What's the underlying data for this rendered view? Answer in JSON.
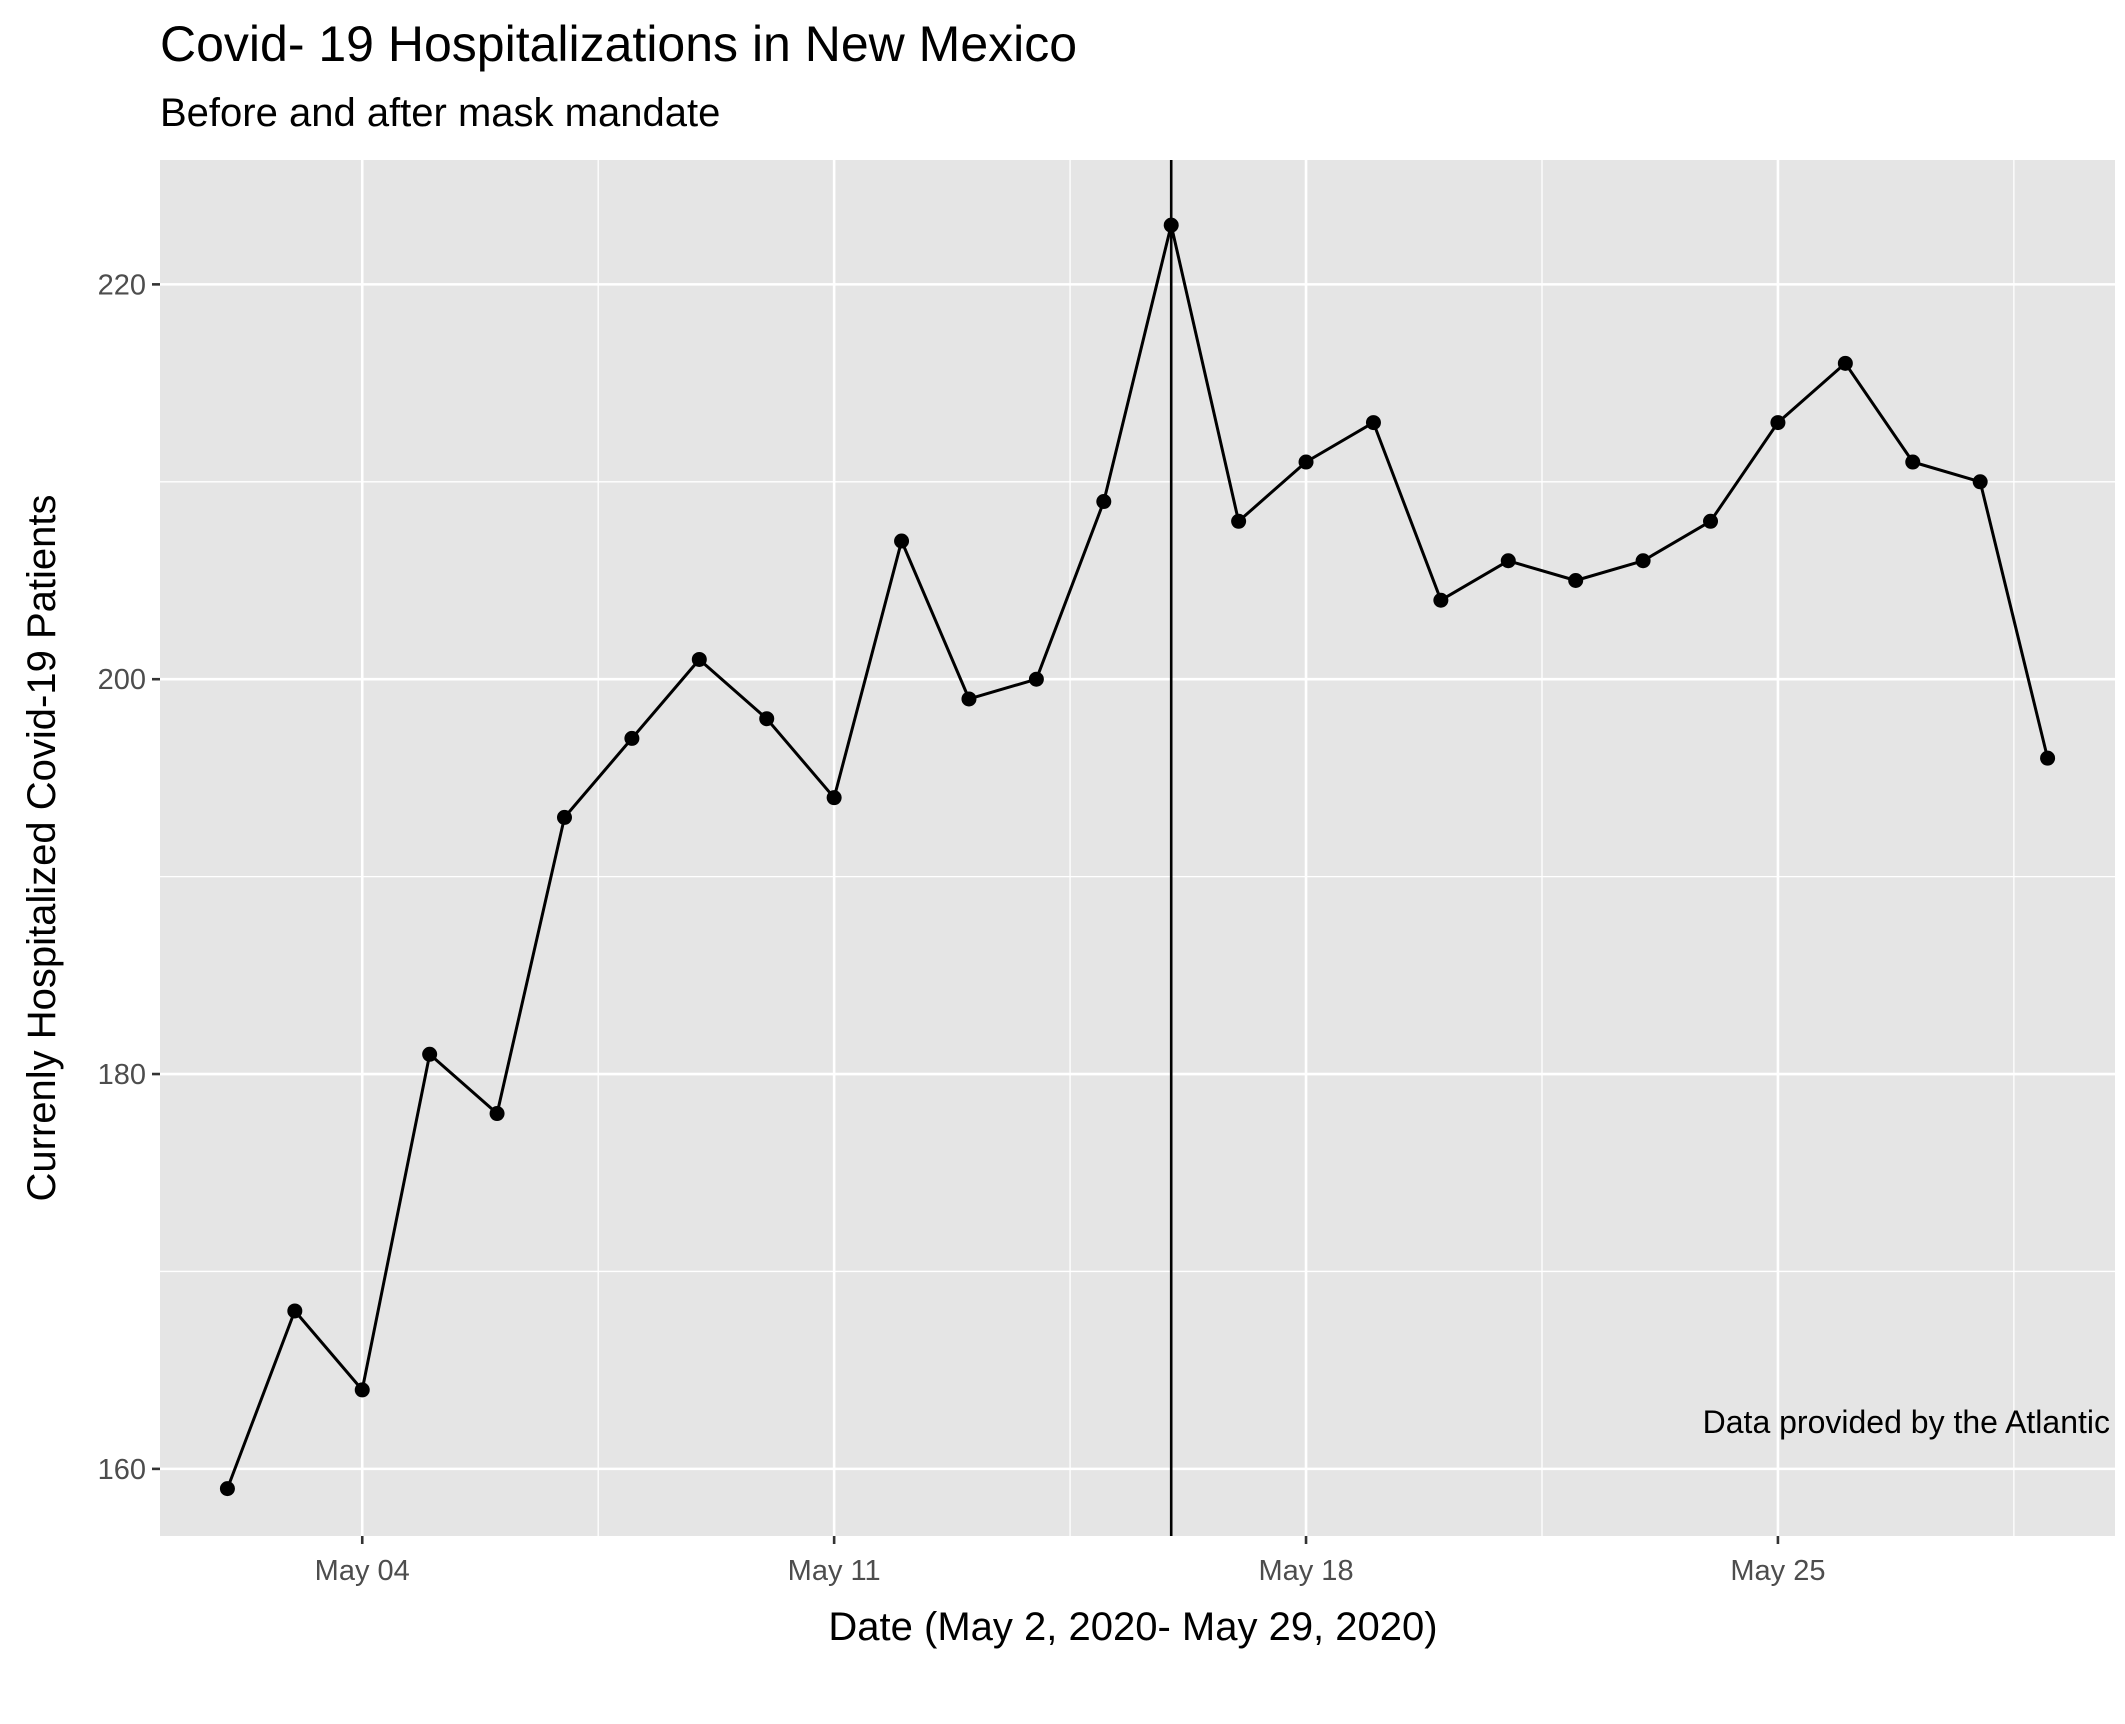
{
  "chart_data": {
    "type": "line",
    "title": "Covid- 19 Hospitalizations in New Mexico",
    "subtitle": "Before and after mask mandate",
    "caption": "Data provided by the Atlantic",
    "xlabel": "Date (May 2, 2020- May 29, 2020)",
    "ylabel": "Currenly Hospitalized Covid-19 Patients",
    "x_tick_labels": [
      {
        "date": "2020-05-04",
        "label": "May 04"
      },
      {
        "date": "2020-05-11",
        "label": "May 11"
      },
      {
        "date": "2020-05-18",
        "label": "May 18"
      },
      {
        "date": "2020-05-25",
        "label": "May 25"
      }
    ],
    "y_ticks": [
      160,
      180,
      200,
      220
    ],
    "xlim": [
      "2020-05-01",
      "2020-05-30"
    ],
    "ylim": [
      156.6,
      226.3
    ],
    "vline": {
      "date": "2020-05-16",
      "color": "#000000"
    },
    "grid": true,
    "panel_background": "#e5e5e5",
    "grid_color": "#ffffff",
    "series_color": "#000000",
    "series": [
      {
        "points": [
          {
            "x": "2020-05-02",
            "y": 159
          },
          {
            "x": "2020-05-03",
            "y": 168
          },
          {
            "x": "2020-05-04",
            "y": 164
          },
          {
            "x": "2020-05-05",
            "y": 181
          },
          {
            "x": "2020-05-06",
            "y": 178
          },
          {
            "x": "2020-05-07",
            "y": 193
          },
          {
            "x": "2020-05-08",
            "y": 197
          },
          {
            "x": "2020-05-09",
            "y": 201
          },
          {
            "x": "2020-05-10",
            "y": 198
          },
          {
            "x": "2020-05-11",
            "y": 194
          },
          {
            "x": "2020-05-12",
            "y": 207
          },
          {
            "x": "2020-05-13",
            "y": 199
          },
          {
            "x": "2020-05-14",
            "y": 200
          },
          {
            "x": "2020-05-15",
            "y": 209
          },
          {
            "x": "2020-05-16",
            "y": 223
          },
          {
            "x": "2020-05-17",
            "y": 208
          },
          {
            "x": "2020-05-18",
            "y": 211
          },
          {
            "x": "2020-05-19",
            "y": 213
          },
          {
            "x": "2020-05-20",
            "y": 204
          },
          {
            "x": "2020-05-21",
            "y": 206
          },
          {
            "x": "2020-05-22",
            "y": 205
          },
          {
            "x": "2020-05-23",
            "y": 206
          },
          {
            "x": "2020-05-24",
            "y": 208
          },
          {
            "x": "2020-05-25",
            "y": 213
          },
          {
            "x": "2020-05-26",
            "y": 216
          },
          {
            "x": "2020-05-27",
            "y": 211
          },
          {
            "x": "2020-05-28",
            "y": 210
          },
          {
            "x": "2020-05-29",
            "y": 196
          }
        ]
      }
    ]
  }
}
